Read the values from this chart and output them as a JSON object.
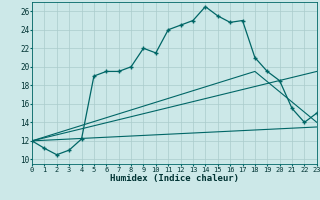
{
  "xlabel": "Humidex (Indice chaleur)",
  "xlim": [
    0,
    23
  ],
  "ylim": [
    9.5,
    27
  ],
  "xticks": [
    0,
    1,
    2,
    3,
    4,
    5,
    6,
    7,
    8,
    9,
    10,
    11,
    12,
    13,
    14,
    15,
    16,
    17,
    18,
    19,
    20,
    21,
    22,
    23
  ],
  "yticks": [
    10,
    12,
    14,
    16,
    18,
    20,
    22,
    24,
    26
  ],
  "bg_color": "#cce8e8",
  "line_color": "#006666",
  "grid_color": "#aacccc",
  "line1_x": [
    0,
    1,
    2,
    3,
    4,
    5,
    6,
    7,
    8,
    9,
    10,
    11,
    12,
    13,
    14,
    15,
    16,
    17,
    18,
    19,
    20,
    21,
    22,
    23
  ],
  "line1_y": [
    12.0,
    11.2,
    10.5,
    11.0,
    12.2,
    19.0,
    19.5,
    19.5,
    20.0,
    22.0,
    21.5,
    24.0,
    24.5,
    25.0,
    26.5,
    25.5,
    24.8,
    25.0,
    21.0,
    19.5,
    18.5,
    15.5,
    14.0,
    15.0
  ],
  "line2_x": [
    0,
    23
  ],
  "line2_y": [
    12.0,
    13.5
  ],
  "line3_x": [
    0,
    23
  ],
  "line3_y": [
    12.0,
    19.5
  ],
  "line4_x": [
    0,
    18,
    23
  ],
  "line4_y": [
    12.0,
    19.5,
    14.0
  ]
}
